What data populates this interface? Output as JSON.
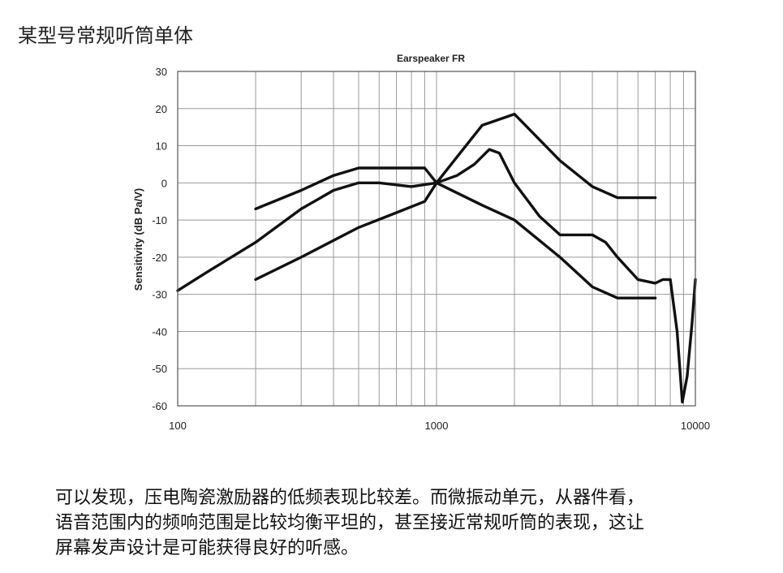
{
  "heading": "某型号常规听筒单体",
  "caption": {
    "lines": [
      "可以发现，压电陶瓷激励器的低频表现比较差。而微振动单元，从器件看，",
      "语音范围内的频响范围是比较均衡平坦的，甚至接近常规听筒的表现，这让",
      "屏幕发声设计是可能获得良好的听感。"
    ]
  },
  "chart_data": {
    "type": "line",
    "title": "Earspeaker FR",
    "xlabel": "",
    "ylabel": "Sensitivity (dB Pa/V)",
    "xscale": "log",
    "xlim": [
      100,
      10000
    ],
    "ylim": [
      -60,
      30
    ],
    "xticks": [
      100,
      1000,
      10000
    ],
    "xtick_labels": [
      "100",
      "1000",
      "10000"
    ],
    "yticks": [
      30,
      20,
      10,
      0,
      -10,
      -20,
      -30,
      -40,
      -50,
      -60
    ],
    "ytick_labels": [
      "30",
      "20",
      "10",
      "0",
      "-10",
      "-20",
      "-30",
      "-40",
      "-50",
      "-60"
    ],
    "grid": true,
    "line_color": "#111111",
    "series": [
      {
        "x": [
          200,
          300,
          400,
          500,
          700,
          900,
          1000,
          1200,
          1500,
          2000,
          3000,
          4000,
          5000,
          7000
        ],
        "y": [
          -7,
          -2,
          2,
          4,
          4,
          4,
          0,
          7,
          15.5,
          18.5,
          6,
          -1,
          -4,
          -4
        ]
      },
      {
        "x": [
          100,
          130,
          200,
          300,
          400,
          500,
          600,
          800,
          1000,
          1200,
          1400,
          1600,
          1750,
          2000,
          2500,
          3000,
          3500,
          4000,
          4500,
          5000,
          6000,
          7000,
          7500,
          8000,
          8500,
          8900,
          9300,
          9700,
          10000
        ],
        "y": [
          -29,
          -24,
          -16,
          -7,
          -2,
          0,
          0,
          -1,
          0,
          2,
          5,
          9,
          8,
          0,
          -9,
          -14,
          -14,
          -14,
          -16,
          -20,
          -26,
          -27,
          -26,
          -26,
          -40,
          -59,
          -52,
          -38,
          -26
        ]
      },
      {
        "x": [
          200,
          300,
          500,
          700,
          900,
          1000,
          1500,
          2000,
          3000,
          4000,
          5000,
          7000
        ],
        "y": [
          -26,
          -20,
          -12,
          -8,
          -5,
          0,
          -6,
          -10,
          -20,
          -28,
          -31,
          -31
        ]
      }
    ]
  }
}
